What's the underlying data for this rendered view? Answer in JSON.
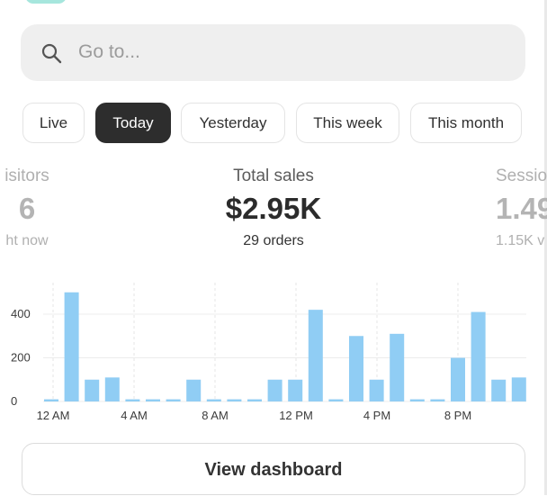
{
  "search": {
    "placeholder": "Go to..."
  },
  "filters": [
    {
      "label": "Live",
      "active": false
    },
    {
      "label": "Today",
      "active": true
    },
    {
      "label": "Yesterday",
      "active": false
    },
    {
      "label": "This week",
      "active": false
    },
    {
      "label": "This month",
      "active": false
    }
  ],
  "stats": {
    "visitors": {
      "label": "isitors",
      "value": "6",
      "sub": "ht now"
    },
    "sales": {
      "label": "Total sales",
      "value": "$2.95K",
      "sub": "29 orders"
    },
    "sessions": {
      "label": "Sessio",
      "value": "1.49",
      "sub": "1.15K v"
    }
  },
  "chart_data": {
    "type": "bar",
    "x_tick_labels": [
      "12 AM",
      "4 AM",
      "8 AM",
      "12 PM",
      "4 PM",
      "8 PM"
    ],
    "y_tick_labels": [
      "0",
      "200",
      "400"
    ],
    "ylim": [
      0,
      550
    ],
    "grid": true,
    "values": [
      10,
      500,
      100,
      110,
      10,
      10,
      10,
      100,
      10,
      10,
      10,
      100,
      100,
      420,
      10,
      300,
      100,
      310,
      10,
      10,
      200,
      410,
      100,
      110
    ],
    "bar_color": "#90cdf4"
  },
  "actions": {
    "dashboard_label": "View dashboard"
  }
}
